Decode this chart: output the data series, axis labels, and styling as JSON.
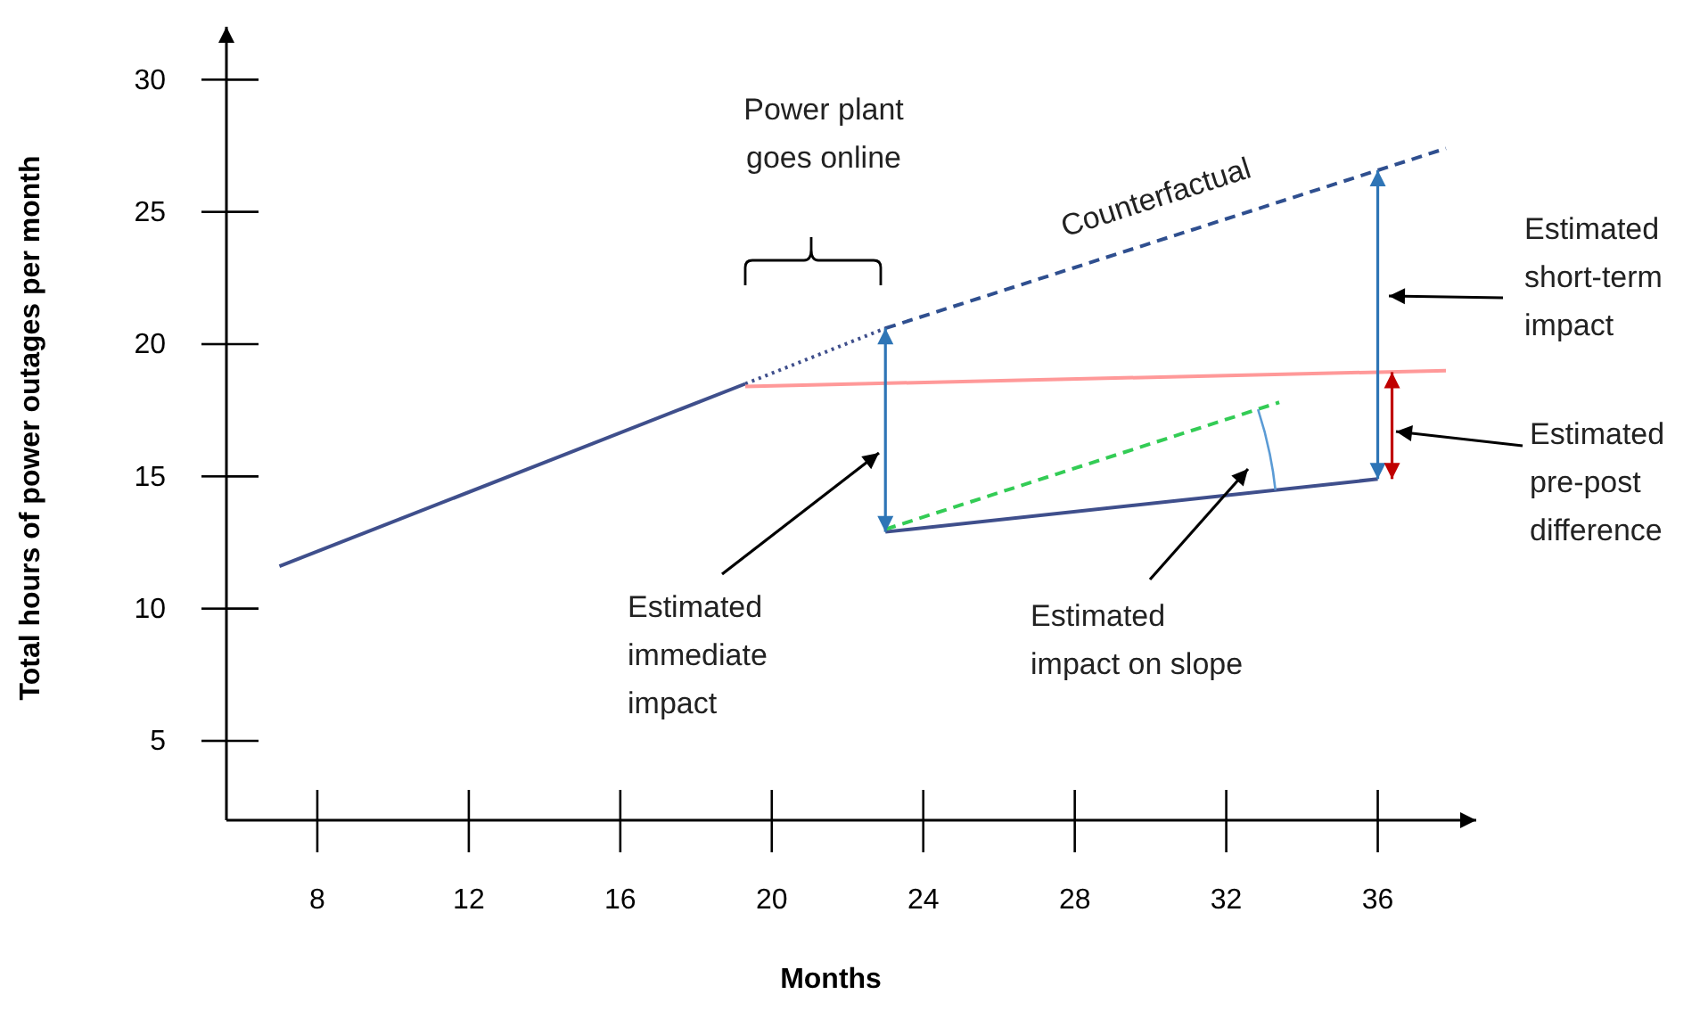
{
  "chart_data": {
    "type": "line",
    "xlabel": "Months",
    "ylabel": "Total hours of power outages per month",
    "xlim": [
      5.6,
      38.6
    ],
    "ylim": [
      2,
      32
    ],
    "xticks": [
      8,
      12,
      16,
      20,
      24,
      28,
      32,
      36
    ],
    "yticks": [
      5,
      10,
      15,
      20,
      25,
      30
    ],
    "series": [
      {
        "color": "#3f4f8c",
        "x": [
          7,
          19.3
        ],
        "values": [
          11.6,
          18.5
        ],
        "line_style": "solid"
      },
      {
        "color": "#3f4f8c",
        "x": [
          19.3,
          23
        ],
        "values": [
          18.5,
          20.6
        ],
        "line_style": "dotted"
      },
      {
        "color": "#2f4f8f",
        "x": [
          23,
          37.8
        ],
        "values": [
          20.6,
          27.4
        ],
        "line_style": "dashed"
      },
      {
        "color": "#ff9999",
        "x": [
          19.3,
          37.8
        ],
        "values": [
          18.4,
          19.0
        ],
        "line_style": "solid"
      },
      {
        "color": "#3f4f8c",
        "x": [
          23,
          36
        ],
        "values": [
          12.9,
          14.9
        ],
        "line_style": "solid"
      },
      {
        "color": "#33cc55",
        "x": [
          23,
          33.4
        ],
        "values": [
          13.0,
          17.8
        ],
        "line_style": "dashed"
      }
    ],
    "annotations": [
      "Power plant\ngoes online",
      "Counterfactual",
      "Estimated\nshort-term\nimpact",
      "Estimated\npre-post\ndifference",
      "Estimated\nimmediate\nimpact",
      "Estimated\nimpact on slope"
    ]
  }
}
